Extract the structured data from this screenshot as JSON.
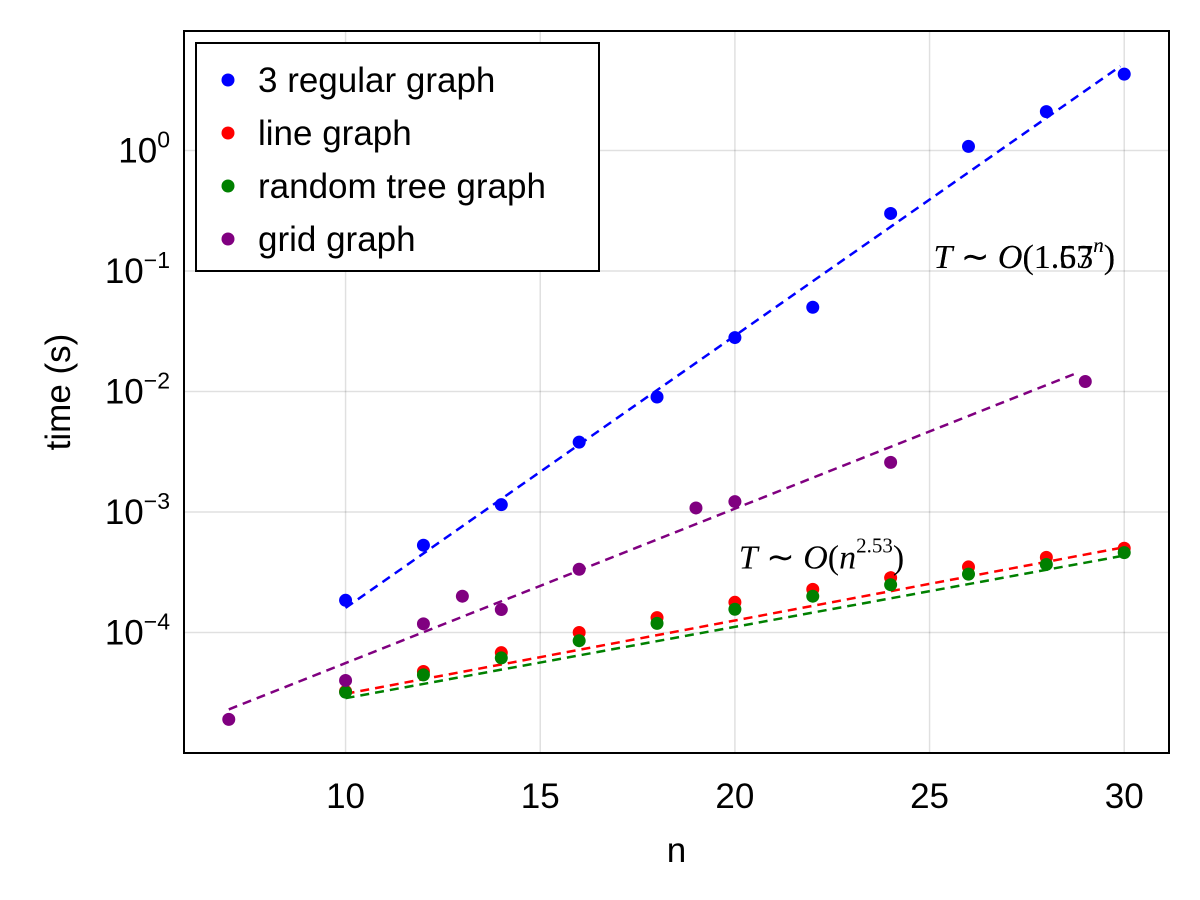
{
  "chart_data": {
    "type": "scatter",
    "xlabel": "n",
    "ylabel": "time (s)",
    "x_ticks": [
      10,
      15,
      20,
      25,
      30
    ],
    "y_ticks": [
      {
        "value": 0.0001,
        "base": "10",
        "exp": "−4"
      },
      {
        "value": 0.001,
        "base": "10",
        "exp": "−3"
      },
      {
        "value": 0.01,
        "base": "10",
        "exp": "−2"
      },
      {
        "value": 0.1,
        "base": "10",
        "exp": "−1"
      },
      {
        "value": 1,
        "base": "10",
        "exp": "0"
      }
    ],
    "xlim": [
      5.85,
      31.15
    ],
    "ylim": [
      1e-05,
      9.8
    ],
    "yscale": "log",
    "grid": true,
    "legend_position": "top-left",
    "series": [
      {
        "name": "3 regular graph",
        "color": "#0000ff",
        "x": [
          10,
          12,
          14,
          16,
          18,
          20,
          22,
          24,
          26,
          28,
          30
        ],
        "y": [
          0.000185,
          0.00053,
          0.00115,
          0.0038,
          0.009,
          0.028,
          0.05,
          0.3,
          1.08,
          2.1,
          4.3
        ],
        "fit": {
          "x": [
            10,
            29.9
          ],
          "y": [
            0.00016,
            5.0
          ]
        }
      },
      {
        "name": "line graph",
        "color": "#ff0000",
        "x": [
          10,
          12,
          14,
          16,
          18,
          20,
          22,
          24,
          26,
          28,
          30
        ],
        "y": [
          3.25e-05,
          4.75e-05,
          6.8e-05,
          0.0001,
          0.000133,
          0.000178,
          0.000228,
          0.000285,
          0.00035,
          0.00042,
          0.0005
        ],
        "fit": {
          "x": [
            10,
            30
          ],
          "y": [
            3.1e-05,
            0.00051
          ]
        }
      },
      {
        "name": "random tree graph",
        "color": "#008000",
        "x": [
          10,
          12,
          14,
          16,
          18,
          20,
          22,
          24,
          26,
          28,
          30
        ],
        "y": [
          3.2e-05,
          4.45e-05,
          6.15e-05,
          8.55e-05,
          0.000119,
          0.000156,
          0.0002,
          0.000249,
          0.000305,
          0.000367,
          0.00046
        ],
        "fit": {
          "x": [
            10,
            30
          ],
          "y": [
            2.85e-05,
            0.000435
          ]
        }
      },
      {
        "name": "grid graph",
        "color": "#800080",
        "x": [
          7,
          10,
          12,
          13,
          14,
          16,
          19,
          20,
          24,
          29
        ],
        "y": [
          1.9e-05,
          4e-05,
          0.000118,
          0.0002,
          0.000155,
          0.000335,
          0.00108,
          0.00122,
          0.00258,
          0.0121
        ],
        "fit": {
          "x": [
            7,
            28.8
          ],
          "y": [
            2.3e-05,
            0.0143
          ]
        }
      }
    ],
    "annotations": [
      {
        "id": "exp_fit_a",
        "parts": [
          "T",
          " ∼ ",
          "O",
          "(1.63",
          "n",
          ")"
        ],
        "x": 25.1,
        "y": 0.128
      },
      {
        "id": "exp_fit_b",
        "parts": [
          "T",
          " ∼ ",
          "O",
          "(1.57",
          "n",
          ")"
        ],
        "x": 25.1,
        "y": 0.128
      },
      {
        "id": "poly_fit",
        "parts": [
          "T",
          " ∼ ",
          "O",
          "(",
          "n",
          "2.53",
          ")"
        ],
        "x": 20.1,
        "y": 0.00041
      }
    ]
  }
}
